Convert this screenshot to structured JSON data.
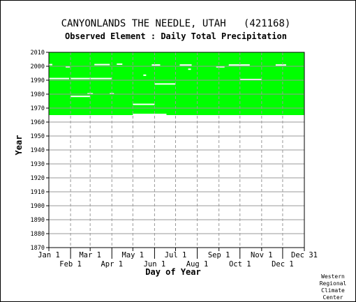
{
  "chart_data": {
    "type": "heatmap",
    "title": "CANYONLANDS THE NEEDLE, UTAH   (421168)",
    "subtitle": "Observed Element : Daily Total Precipitation",
    "xlabel": "Day of Year",
    "ylabel": "Year",
    "ylim": [
      1870,
      2010
    ],
    "yticks": [
      1870,
      1880,
      1890,
      1900,
      1910,
      1920,
      1930,
      1940,
      1950,
      1960,
      1970,
      1980,
      1990,
      2000,
      2010
    ],
    "xlim": [
      1,
      366
    ],
    "xticks_upper": [
      {
        "label": "Jan 1",
        "day": 1
      },
      {
        "label": "Mar 1",
        "day": 60
      },
      {
        "label": "May 1",
        "day": 121
      },
      {
        "label": "Jul 1",
        "day": 182
      },
      {
        "label": "Sep 1",
        "day": 244
      },
      {
        "label": "Nov 1",
        "day": 305
      },
      {
        "label": "Dec 31",
        "day": 366
      }
    ],
    "xticks_lower": [
      {
        "label": "Feb 1",
        "day": 32
      },
      {
        "label": "Apr 1",
        "day": 91
      },
      {
        "label": "Jun 1",
        "day": 152
      },
      {
        "label": "Aug 1",
        "day": 213
      },
      {
        "label": "Oct 1",
        "day": 274
      },
      {
        "label": "Dec 1",
        "day": 335
      }
    ],
    "grid": true,
    "data_color": "#00ff00",
    "missing_color": "#ffffff",
    "data_coverage": {
      "first_year": 1965,
      "last_year": 2009
    },
    "missing_segments": [
      {
        "year": 1991.2,
        "start_day": 1,
        "end_day": 30
      },
      {
        "year": 1991.2,
        "start_day": 32,
        "end_day": 91
      },
      {
        "year": 1990.5,
        "start_day": 274,
        "end_day": 305
      },
      {
        "year": 1987.3,
        "start_day": 152,
        "end_day": 182
      },
      {
        "year": 1978.4,
        "start_day": 32,
        "end_day": 60
      },
      {
        "year": 1972.7,
        "start_day": 121,
        "end_day": 152
      },
      {
        "year": 1965.5,
        "start_day": 121,
        "end_day": 169
      },
      {
        "year": 2001.2,
        "start_day": 1,
        "end_day": 6
      },
      {
        "year": 2001.2,
        "start_day": 66,
        "end_day": 88
      },
      {
        "year": 2001.5,
        "start_day": 98,
        "end_day": 106
      },
      {
        "year": 2000.9,
        "start_day": 148,
        "end_day": 160
      },
      {
        "year": 2000.9,
        "start_day": 188,
        "end_day": 205
      },
      {
        "year": 2000.9,
        "start_day": 258,
        "end_day": 288
      },
      {
        "year": 2000.9,
        "start_day": 325,
        "end_day": 340
      },
      {
        "year": 1999.6,
        "start_day": 25,
        "end_day": 31
      },
      {
        "year": 1999.6,
        "start_day": 240,
        "end_day": 252
      },
      {
        "year": 1997.9,
        "start_day": 200,
        "end_day": 204
      },
      {
        "year": 1993.6,
        "start_day": 136,
        "end_day": 140
      },
      {
        "year": 1980.3,
        "start_day": 56,
        "end_day": 64
      },
      {
        "year": 1980.3,
        "start_day": 88,
        "end_day": 94
      }
    ]
  },
  "credit": [
    "Western",
    "Regional",
    "Climate",
    "Center"
  ]
}
